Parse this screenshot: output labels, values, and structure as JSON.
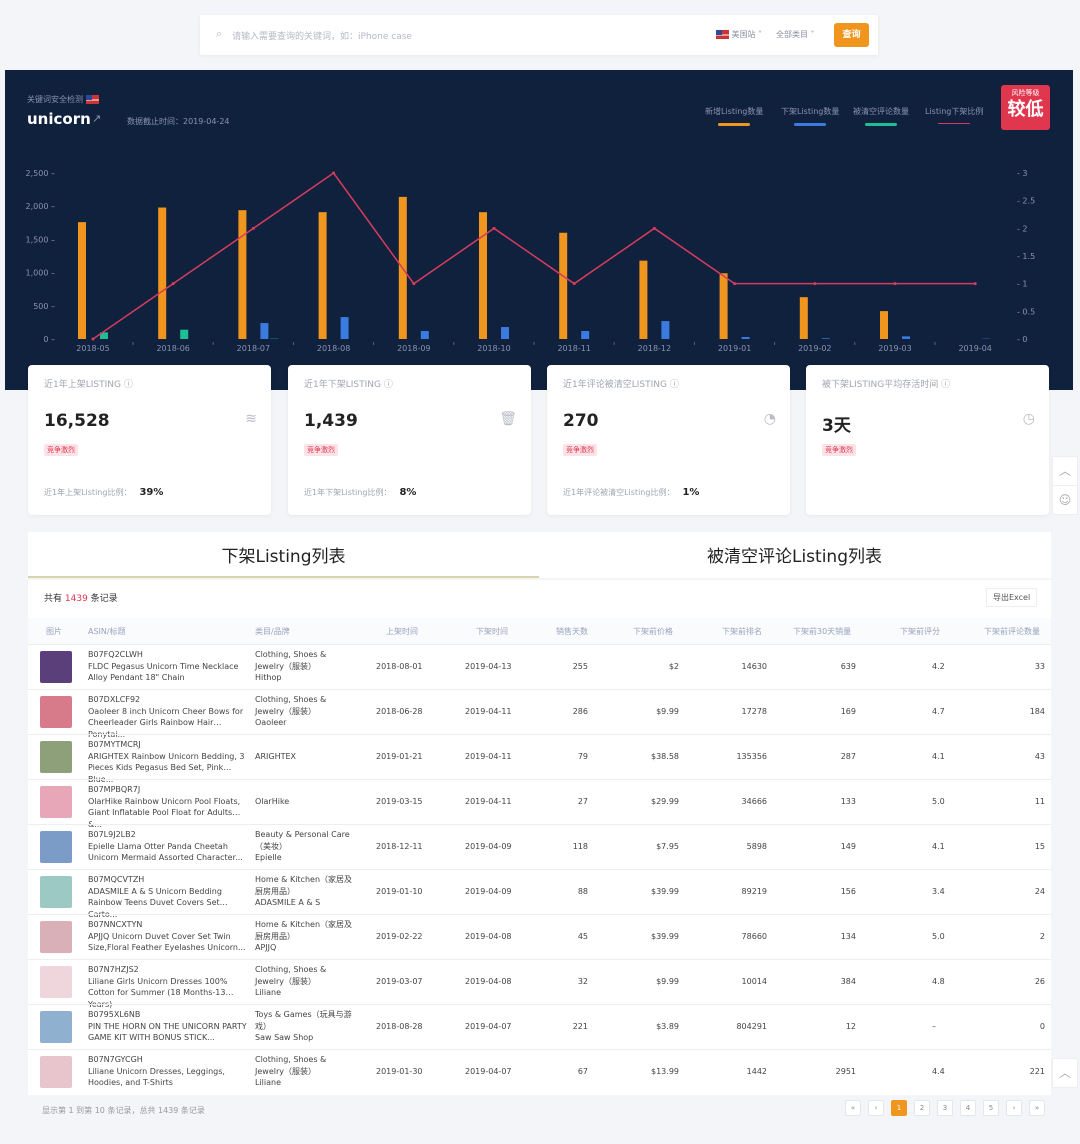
{
  "search": {
    "placeholder": "请输入需要查询的关键词，如：iPhone case",
    "marketplace": "美国站",
    "category": "全部类目",
    "submit": "查询"
  },
  "header": {
    "section_label": "关键词安全检测",
    "keyword": "unicorn",
    "date_label": "数据截止时间：",
    "date": "2019-04-24",
    "risk_label": "风险等级",
    "risk_value": "较低"
  },
  "legend": [
    {
      "label": "新增Listing数量",
      "color": "#f0951e"
    },
    {
      "label": "下架Listing数量",
      "color": "#3b7be0"
    },
    {
      "label": "被清空评论数量",
      "color": "#1fbf95"
    },
    {
      "label": "Listing下架比例",
      "color": "#d63c5e"
    }
  ],
  "chart_data": {
    "type": "bar+line",
    "categories": [
      "2018-05",
      "2018-06",
      "2018-07",
      "2018-08",
      "2018-09",
      "2018-10",
      "2018-11",
      "2018-12",
      "2019-01",
      "2019-02",
      "2019-03",
      "2019-04"
    ],
    "series": [
      {
        "name": "新增Listing数量",
        "type": "bar",
        "axis": "left",
        "values": [
          1760,
          1980,
          1940,
          1910,
          2140,
          1910,
          1600,
          1180,
          990,
          630,
          420,
          0
        ]
      },
      {
        "name": "下架Listing数量",
        "type": "bar",
        "axis": "left",
        "values": [
          0,
          0,
          240,
          330,
          120,
          180,
          120,
          270,
          30,
          10,
          40,
          5
        ]
      },
      {
        "name": "被清空评论数量",
        "type": "bar",
        "axis": "left",
        "values": [
          100,
          140,
          5,
          0,
          0,
          0,
          0,
          0,
          0,
          0,
          0,
          0
        ]
      },
      {
        "name": "Listing下架比例",
        "type": "line",
        "axis": "right",
        "values": [
          0,
          1,
          2,
          3,
          1,
          2,
          1,
          2,
          1,
          1,
          1,
          1
        ]
      }
    ],
    "y_left": {
      "range": [
        0,
        2500
      ],
      "ticks": [
        "0",
        "500",
        "1,000",
        "1,500",
        "2,000",
        "2,500"
      ]
    },
    "y_right": {
      "range": [
        0,
        3
      ],
      "ticks": [
        "0",
        "0.5",
        "1",
        "1.5",
        "2",
        "2.5",
        "3"
      ]
    },
    "grid": false,
    "legend": "top-right"
  },
  "cards": [
    {
      "title": "近1年上架LISTING",
      "value": "16,528",
      "icon": "layers-icon",
      "tag": "竞争激烈",
      "foot_label": "近1年上架Listing比例：",
      "foot_value": "39%"
    },
    {
      "title": "近1年下架LISTING",
      "value": "1,439",
      "icon": "trash-icon",
      "tag": "竞争激烈",
      "foot_label": "近1年下架Listing比例：",
      "foot_value": "8%"
    },
    {
      "title": "近1年评论被清空LISTING",
      "value": "270",
      "icon": "pie-chart-icon",
      "tag": "竞争激烈",
      "foot_label": "近1年评论被清空Listing比例：",
      "foot_value": "1%"
    },
    {
      "title": "被下架LISTING平均存活时间",
      "value": "3天",
      "icon": "clock-icon",
      "tag": "竞争激烈",
      "foot_label": "",
      "foot_value": ""
    }
  ],
  "tabs": [
    "下架Listing列表",
    "被清空评论Listing列表"
  ],
  "table": {
    "total_prefix": "共有",
    "total": "1439",
    "total_suffix": "条记录",
    "export": "导出Excel",
    "columns": [
      "图片",
      "ASIN/标题",
      "类目/品牌",
      "上架时间",
      "下架时间",
      "销售天数",
      "下架前价格",
      "下架前排名",
      "下架前30天销量",
      "下架前评分",
      "下架前评论数量"
    ],
    "rows": [
      {
        "asin": "B07FQ2CLWH",
        "title": "FLDC Pegasus Unicorn Time Necklace Alloy Pendant 18\" Chain",
        "category": "Clothing, Shoes & Jewelry（服装）",
        "brand": "Hithop",
        "listed": "2018-08-01",
        "delisted": "2019-04-13",
        "days": "255",
        "price": "$2",
        "rank": "14630",
        "sales": "639",
        "rating": "4.2",
        "reviews": "33",
        "thumb": "#5a3f7a"
      },
      {
        "asin": "B07DXLCF92",
        "title": "Oaoleer 8 inch Unicorn Cheer Bows for Cheerleader Girls Rainbow Hair Ponytai...",
        "category": "Clothing, Shoes & Jewelry（服装）",
        "brand": "Oaoleer",
        "listed": "2018-06-28",
        "delisted": "2019-04-11",
        "days": "286",
        "price": "$9.99",
        "rank": "17278",
        "sales": "169",
        "rating": "4.7",
        "reviews": "184",
        "thumb": "#d77a8a"
      },
      {
        "asin": "B07MYTMCRJ",
        "title": "ARIGHTEX Rainbow Unicorn Bedding, 3 Pieces Kids Pegasus Bed Set, Pink Blue...",
        "category": "ARIGHTEX",
        "brand": "",
        "listed": "2019-01-21",
        "delisted": "2019-04-11",
        "days": "79",
        "price": "$38.58",
        "rank": "135356",
        "sales": "287",
        "rating": "4.1",
        "reviews": "43",
        "thumb": "#8ea07a"
      },
      {
        "asin": "B07MPBQR7J",
        "title": "OlarHike Rainbow Unicorn Pool Floats, Giant Inflatable Pool Float for Adults &...",
        "category": "OlarHike",
        "brand": "",
        "listed": "2019-03-15",
        "delisted": "2019-04-11",
        "days": "27",
        "price": "$29.99",
        "rank": "34666",
        "sales": "133",
        "rating": "5.0",
        "reviews": "11",
        "thumb": "#e7a7b8"
      },
      {
        "asin": "B07L9J2LB2",
        "title": "Epielle Llama Otter Panda Cheetah Unicorn Mermaid Assorted Character...",
        "category": "Beauty & Personal Care（美妆）",
        "brand": "Epielle",
        "listed": "2018-12-11",
        "delisted": "2019-04-09",
        "days": "118",
        "price": "$7.95",
        "rank": "5898",
        "sales": "149",
        "rating": "4.1",
        "reviews": "15",
        "thumb": "#7a9cc6"
      },
      {
        "asin": "B07MQCVTZH",
        "title": "ADASMILE A & S Unicorn Bedding Rainbow Teens Duvet Covers Set Carto...",
        "category": "Home & Kitchen（家居及厨房用品）",
        "brand": "ADASMILE A & S",
        "listed": "2019-01-10",
        "delisted": "2019-04-09",
        "days": "88",
        "price": "$39.99",
        "rank": "89219",
        "sales": "156",
        "rating": "3.4",
        "reviews": "24",
        "thumb": "#9cc9c4"
      },
      {
        "asin": "B07NNCXTYN",
        "title": "APJJQ Unicorn Duvet Cover Set Twin Size,Floral Feather Eyelashes Unicorn...",
        "category": "Home & Kitchen（家居及厨房用品）",
        "brand": "APJJQ",
        "listed": "2019-02-22",
        "delisted": "2019-04-08",
        "days": "45",
        "price": "$39.99",
        "rank": "78660",
        "sales": "134",
        "rating": "5.0",
        "reviews": "2",
        "thumb": "#d9b0b8"
      },
      {
        "asin": "B07N7HZJS2",
        "title": "Liliane Girls Unicorn Dresses 100% Cotton for Summer (18 Months-13 Years)",
        "category": "Clothing, Shoes & Jewelry（服装）",
        "brand": "Liliane",
        "listed": "2019-03-07",
        "delisted": "2019-04-08",
        "days": "32",
        "price": "$9.99",
        "rank": "10014",
        "sales": "384",
        "rating": "4.8",
        "reviews": "26",
        "thumb": "#efd6dc"
      },
      {
        "asin": "B0795XL6NB",
        "title": "PIN THE HORN ON THE UNICORN PARTY GAME KIT WITH BONUS STICK...",
        "category": "Toys & Games（玩具与游戏）",
        "brand": "Saw Saw Shop",
        "listed": "2018-08-28",
        "delisted": "2019-04-07",
        "days": "221",
        "price": "$3.89",
        "rank": "804291",
        "sales": "12",
        "rating": "–",
        "reviews": "0",
        "thumb": "#8fb0cf"
      },
      {
        "asin": "B07N7GYCGH",
        "title": "Liliane Unicorn Dresses, Leggings, Hoodies, and T-Shirts",
        "category": "Clothing, Shoes & Jewelry（服装）",
        "brand": "Liliane",
        "listed": "2019-01-30",
        "delisted": "2019-04-07",
        "days": "67",
        "price": "$13.99",
        "rank": "1442",
        "sales": "2951",
        "rating": "4.4",
        "reviews": "221",
        "thumb": "#e8c4cc"
      }
    ]
  },
  "pagination": {
    "summary": "显示第 1 到第 10 条记录，总共 1439 条记录",
    "first": "«",
    "prev": "‹",
    "pages": [
      "1",
      "2",
      "3",
      "4",
      "5"
    ],
    "current": "1",
    "next": "›",
    "last": "»"
  }
}
